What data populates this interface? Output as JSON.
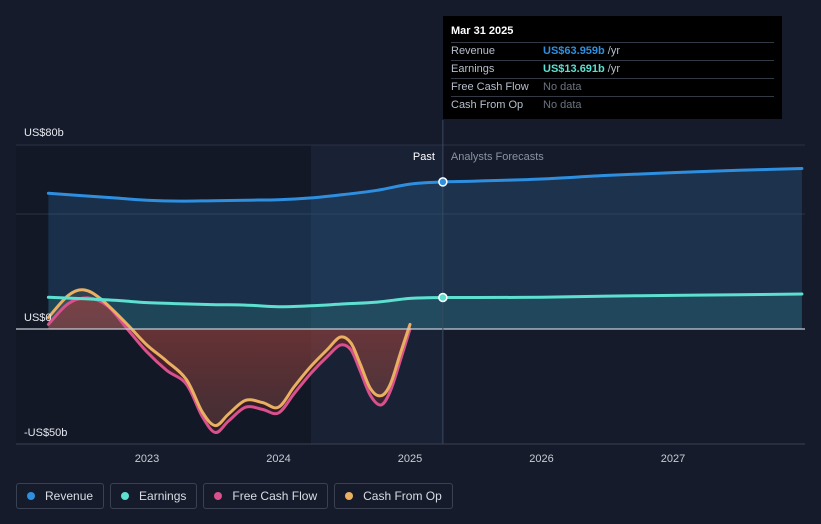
{
  "chart_data": {
    "type": "line",
    "x_axis": {
      "ticks": [
        "2023",
        "2024",
        "2025",
        "2026",
        "2027"
      ],
      "range": [
        2022.25,
        2027.98
      ]
    },
    "y_axis": {
      "tick_labels": [
        "US$80b",
        "US$0",
        "-US$50b"
      ],
      "range": [
        -50,
        80
      ]
    },
    "divider_x": 2025.25,
    "past_label": "Past",
    "forecast_label": "Analysts Forecasts",
    "series": [
      {
        "name": "Revenue",
        "color": "#2e8fe0",
        "points": [
          [
            2022.25,
            59
          ],
          [
            2022.5,
            58
          ],
          [
            2022.75,
            57
          ],
          [
            2023.0,
            56
          ],
          [
            2023.25,
            55.6
          ],
          [
            2023.5,
            55.8
          ],
          [
            2023.75,
            56
          ],
          [
            2024.0,
            56.2
          ],
          [
            2024.25,
            57
          ],
          [
            2024.5,
            58.5
          ],
          [
            2024.75,
            60.3
          ],
          [
            2025.0,
            63
          ],
          [
            2025.25,
            63.959
          ],
          [
            2025.5,
            64.3
          ],
          [
            2026.0,
            65.2
          ],
          [
            2026.5,
            66.8
          ],
          [
            2027.0,
            68
          ],
          [
            2027.5,
            69
          ],
          [
            2027.98,
            69.8
          ]
        ]
      },
      {
        "name": "Earnings",
        "color": "#5de0d0",
        "points": [
          [
            2022.25,
            13.8
          ],
          [
            2022.5,
            13.2
          ],
          [
            2022.75,
            12.5
          ],
          [
            2023.0,
            11.5
          ],
          [
            2023.25,
            11
          ],
          [
            2023.5,
            10.6
          ],
          [
            2023.75,
            10.4
          ],
          [
            2024.0,
            9.7
          ],
          [
            2024.25,
            10.1
          ],
          [
            2024.5,
            10.9
          ],
          [
            2024.75,
            11.7
          ],
          [
            2025.0,
            13.3
          ],
          [
            2025.25,
            13.691
          ],
          [
            2025.5,
            13.7
          ],
          [
            2026.0,
            13.8
          ],
          [
            2026.5,
            14.3
          ],
          [
            2027.0,
            14.6
          ],
          [
            2027.5,
            14.9
          ],
          [
            2027.98,
            15.2
          ]
        ]
      },
      {
        "name": "Free Cash Flow",
        "color": "#d8508c",
        "points": [
          [
            2022.25,
            2
          ],
          [
            2022.4,
            11
          ],
          [
            2022.55,
            13.5
          ],
          [
            2022.7,
            10
          ],
          [
            2022.85,
            0
          ],
          [
            2023.0,
            -10
          ],
          [
            2023.15,
            -18
          ],
          [
            2023.3,
            -24
          ],
          [
            2023.42,
            -38
          ],
          [
            2023.52,
            -45
          ],
          [
            2023.62,
            -40
          ],
          [
            2023.75,
            -34
          ],
          [
            2023.88,
            -35
          ],
          [
            2024.0,
            -36.5
          ],
          [
            2024.12,
            -28
          ],
          [
            2024.25,
            -19
          ],
          [
            2024.37,
            -12
          ],
          [
            2024.47,
            -7
          ],
          [
            2024.55,
            -9
          ],
          [
            2024.62,
            -18
          ],
          [
            2024.7,
            -29
          ],
          [
            2024.78,
            -33
          ],
          [
            2024.85,
            -27
          ],
          [
            2024.93,
            -13
          ],
          [
            2025.0,
            0
          ]
        ]
      },
      {
        "name": "Cash From Op",
        "color": "#e8b060",
        "points": [
          [
            2022.25,
            5
          ],
          [
            2022.4,
            14.5
          ],
          [
            2022.52,
            17
          ],
          [
            2022.65,
            13
          ],
          [
            2022.85,
            2
          ],
          [
            2023.0,
            -7
          ],
          [
            2023.15,
            -14
          ],
          [
            2023.3,
            -22
          ],
          [
            2023.42,
            -36
          ],
          [
            2023.52,
            -42
          ],
          [
            2023.62,
            -37
          ],
          [
            2023.75,
            -31
          ],
          [
            2023.88,
            -32
          ],
          [
            2024.0,
            -34
          ],
          [
            2024.12,
            -25
          ],
          [
            2024.25,
            -16
          ],
          [
            2024.37,
            -9
          ],
          [
            2024.47,
            -3.5
          ],
          [
            2024.55,
            -6
          ],
          [
            2024.62,
            -15
          ],
          [
            2024.7,
            -26
          ],
          [
            2024.78,
            -29
          ],
          [
            2024.85,
            -24
          ],
          [
            2024.93,
            -10
          ],
          [
            2025.0,
            2
          ]
        ]
      }
    ],
    "legend": [
      "Revenue",
      "Earnings",
      "Free Cash Flow",
      "Cash From Op"
    ],
    "legend_position": "bottom-left"
  },
  "tooltip": {
    "date": "Mar 31 2025",
    "rows": [
      {
        "label": "Revenue",
        "value": "US$63.959b",
        "unit": "/yr",
        "color": "#2e8fe0"
      },
      {
        "label": "Earnings",
        "value": "US$13.691b",
        "unit": "/yr",
        "color": "#5de0d0"
      },
      {
        "label": "Free Cash Flow",
        "value": "No data",
        "unit": "",
        "color": "#6b7280"
      },
      {
        "label": "Cash From Op",
        "value": "No data",
        "unit": "",
        "color": "#6b7280"
      }
    ]
  },
  "legend": [
    {
      "label": "Revenue",
      "color": "#2e8fe0"
    },
    {
      "label": "Earnings",
      "color": "#5de0d0"
    },
    {
      "label": "Free Cash Flow",
      "color": "#d8508c"
    },
    {
      "label": "Cash From Op",
      "color": "#e8b060"
    }
  ]
}
